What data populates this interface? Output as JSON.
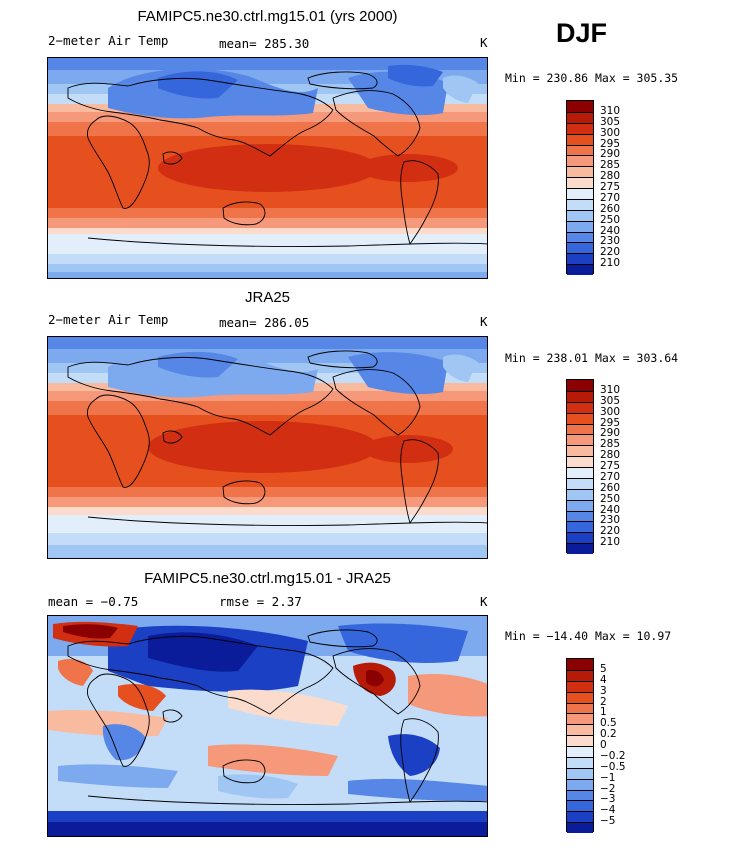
{
  "season": "DJF",
  "panels": [
    {
      "title": "FAMIPC5.ne30.ctrl.mg15.01 (yrs 2000)",
      "left_label": "2−meter Air Temp",
      "mid_label": "mean= 285.30",
      "right_label": "K",
      "min_max": "Min = 230.86 Max = 305.35",
      "colorbar": {
        "labels": [
          "310",
          "305",
          "300",
          "295",
          "290",
          "285",
          "280",
          "275",
          "270",
          "260",
          "250",
          "240",
          "230",
          "220",
          "210"
        ],
        "colors": [
          "#8b0000",
          "#b71a07",
          "#d22f12",
          "#e5501e",
          "#f0744a",
          "#f6987a",
          "#f9bba0",
          "#fbdccc",
          "#e3eefb",
          "#c3dcf8",
          "#a0c6f4",
          "#7da9ee",
          "#5686e6",
          "#3566dc",
          "#1c40c4",
          "#0a1c99"
        ]
      },
      "map_type": "model_temp"
    },
    {
      "title": "JRA25",
      "left_label": "2−meter Air Temp",
      "mid_label": "mean= 286.05",
      "right_label": "K",
      "min_max": "Min = 238.01 Max = 303.64",
      "colorbar": {
        "labels": [
          "310",
          "305",
          "300",
          "295",
          "290",
          "285",
          "280",
          "275",
          "270",
          "260",
          "250",
          "240",
          "230",
          "220",
          "210"
        ],
        "colors": [
          "#8b0000",
          "#b71a07",
          "#d22f12",
          "#e5501e",
          "#f0744a",
          "#f6987a",
          "#f9bba0",
          "#fbdccc",
          "#e3eefb",
          "#c3dcf8",
          "#a0c6f4",
          "#7da9ee",
          "#5686e6",
          "#3566dc",
          "#1c40c4",
          "#0a1c99"
        ]
      },
      "map_type": "obs_temp"
    },
    {
      "title": "FAMIPC5.ne30.ctrl.mg15.01 - JRA25",
      "left_label": "mean =   −0.75",
      "mid_label": "rmse =    2.37",
      "right_label": "K",
      "min_max": "Min = −14.40 Max =  10.97",
      "colorbar": {
        "labels": [
          "5",
          "4",
          "3",
          "2",
          "1",
          "0.5",
          "0.2",
          "0",
          "−0.2",
          "−0.5",
          "−1",
          "−2",
          "−3",
          "−4",
          "−5"
        ],
        "colors": [
          "#8b0000",
          "#b71a07",
          "#d22f12",
          "#e5501e",
          "#f0744a",
          "#f6987a",
          "#f9bba0",
          "#fbdccc",
          "#e3eefb",
          "#c3dcf8",
          "#a0c6f4",
          "#7da9ee",
          "#5686e6",
          "#3566dc",
          "#1c40c4",
          "#0a1c99"
        ]
      },
      "map_type": "difference"
    }
  ]
}
